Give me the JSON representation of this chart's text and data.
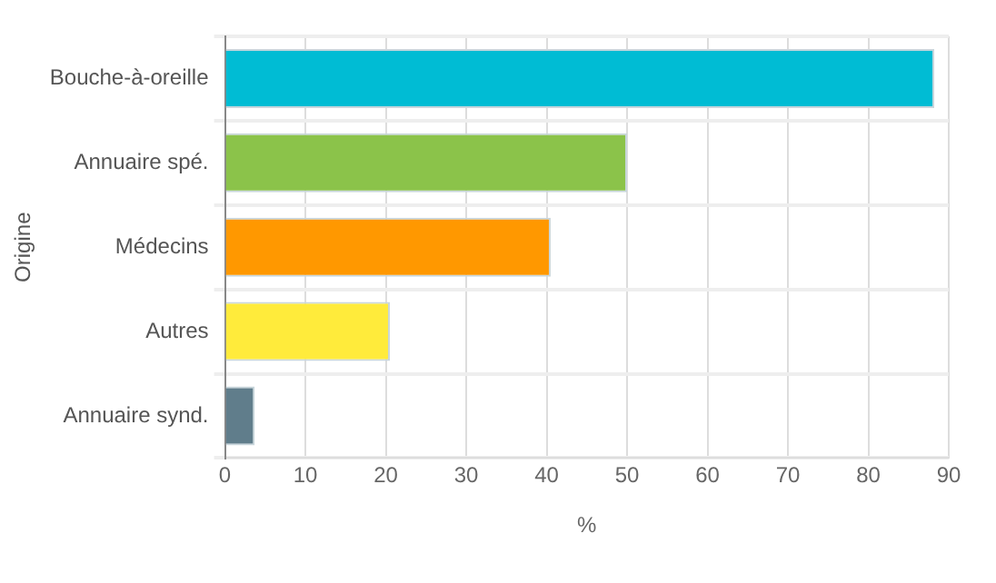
{
  "chart_data": {
    "type": "bar",
    "orientation": "horizontal",
    "categories": [
      "Bouche-à-oreille",
      "Annuaire spé.",
      "Médecins",
      "Autres",
      "Annuaire synd."
    ],
    "values": [
      88.2,
      50,
      40.5,
      20.5,
      3.7
    ],
    "colors": [
      "#00bcd4",
      "#8bc34a",
      "#ff9800",
      "#ffeb3b",
      "#607d8b"
    ],
    "xlim": [
      0,
      90
    ],
    "xticks": [
      0,
      10,
      20,
      30,
      40,
      50,
      60,
      70,
      80,
      90
    ],
    "xlabel": "%",
    "ylabel": "Origine",
    "grid": true,
    "legend": false
  }
}
